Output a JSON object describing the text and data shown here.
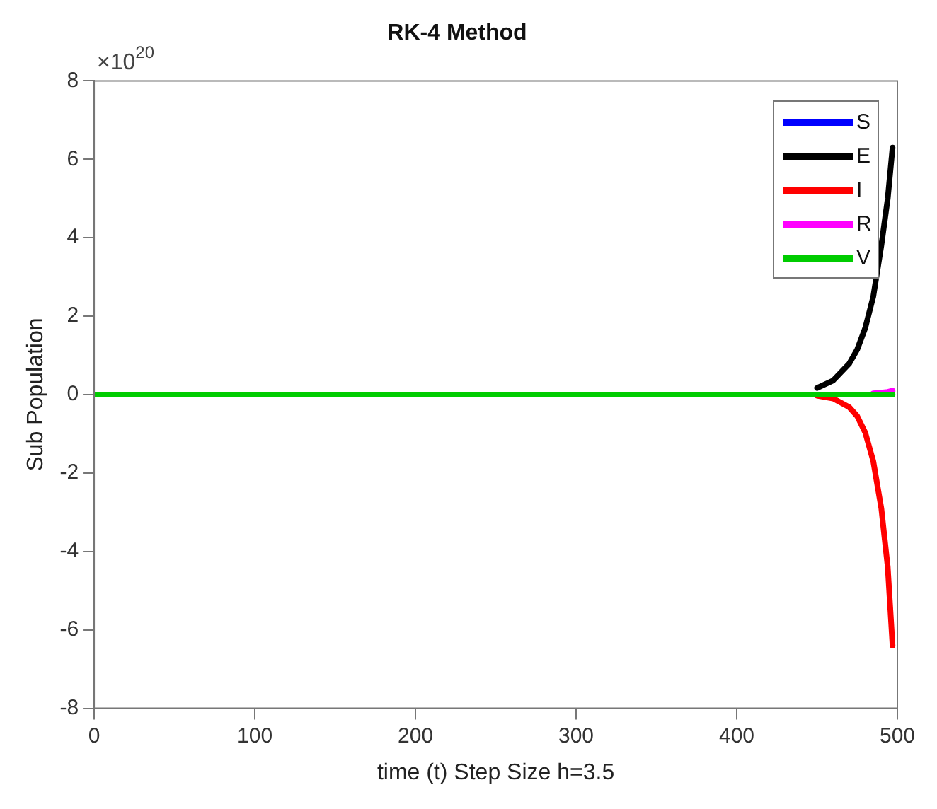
{
  "chart_data": {
    "type": "line",
    "title": "RK-4 Method",
    "xlabel": "time (t) Step Size h=3.5",
    "ylabel": "Sub Population",
    "annotations": [
      "×10$^{20}$"
    ],
    "x": [
      0,
      100,
      200,
      300,
      400,
      440,
      450,
      460,
      470,
      475,
      480,
      485,
      490,
      494,
      497
    ],
    "series": [
      {
        "name": "S",
        "color": "#0000ff",
        "values": [
          null,
          null,
          null,
          null,
          null,
          null,
          null,
          null,
          null,
          null,
          null,
          null,
          null,
          null,
          null
        ]
      },
      {
        "name": "E",
        "color": "#000000",
        "values": [
          null,
          null,
          null,
          null,
          null,
          null,
          0.17,
          0.36,
          0.79,
          1.15,
          1.7,
          2.5,
          3.8,
          5.0,
          6.3
        ]
      },
      {
        "name": "I",
        "color": "#ff0000",
        "values": [
          null,
          null,
          null,
          null,
          null,
          null,
          -0.03,
          -0.1,
          -0.32,
          -0.55,
          -0.97,
          -1.7,
          -2.9,
          -4.4,
          -6.4
        ]
      },
      {
        "name": "R",
        "color": "#ff00ff",
        "values": [
          null,
          null,
          null,
          null,
          null,
          null,
          null,
          null,
          null,
          null,
          null,
          0.03,
          0.05,
          0.07,
          0.1
        ]
      },
      {
        "name": "V",
        "color": "#00cc00",
        "values": [
          0,
          0,
          0,
          0,
          0,
          0,
          0,
          0,
          0,
          0,
          0,
          0,
          0,
          0,
          0
        ]
      }
    ],
    "xlim": [
      0,
      500
    ],
    "xticks": [
      0,
      100,
      200,
      300,
      400,
      500
    ],
    "ylim": [
      -8,
      8
    ],
    "yticks": [
      -8,
      -6,
      -4,
      -2,
      0,
      2,
      4,
      6,
      8
    ],
    "grid": false,
    "legend": "top right",
    "marker": "none",
    "line_style": "solid"
  }
}
